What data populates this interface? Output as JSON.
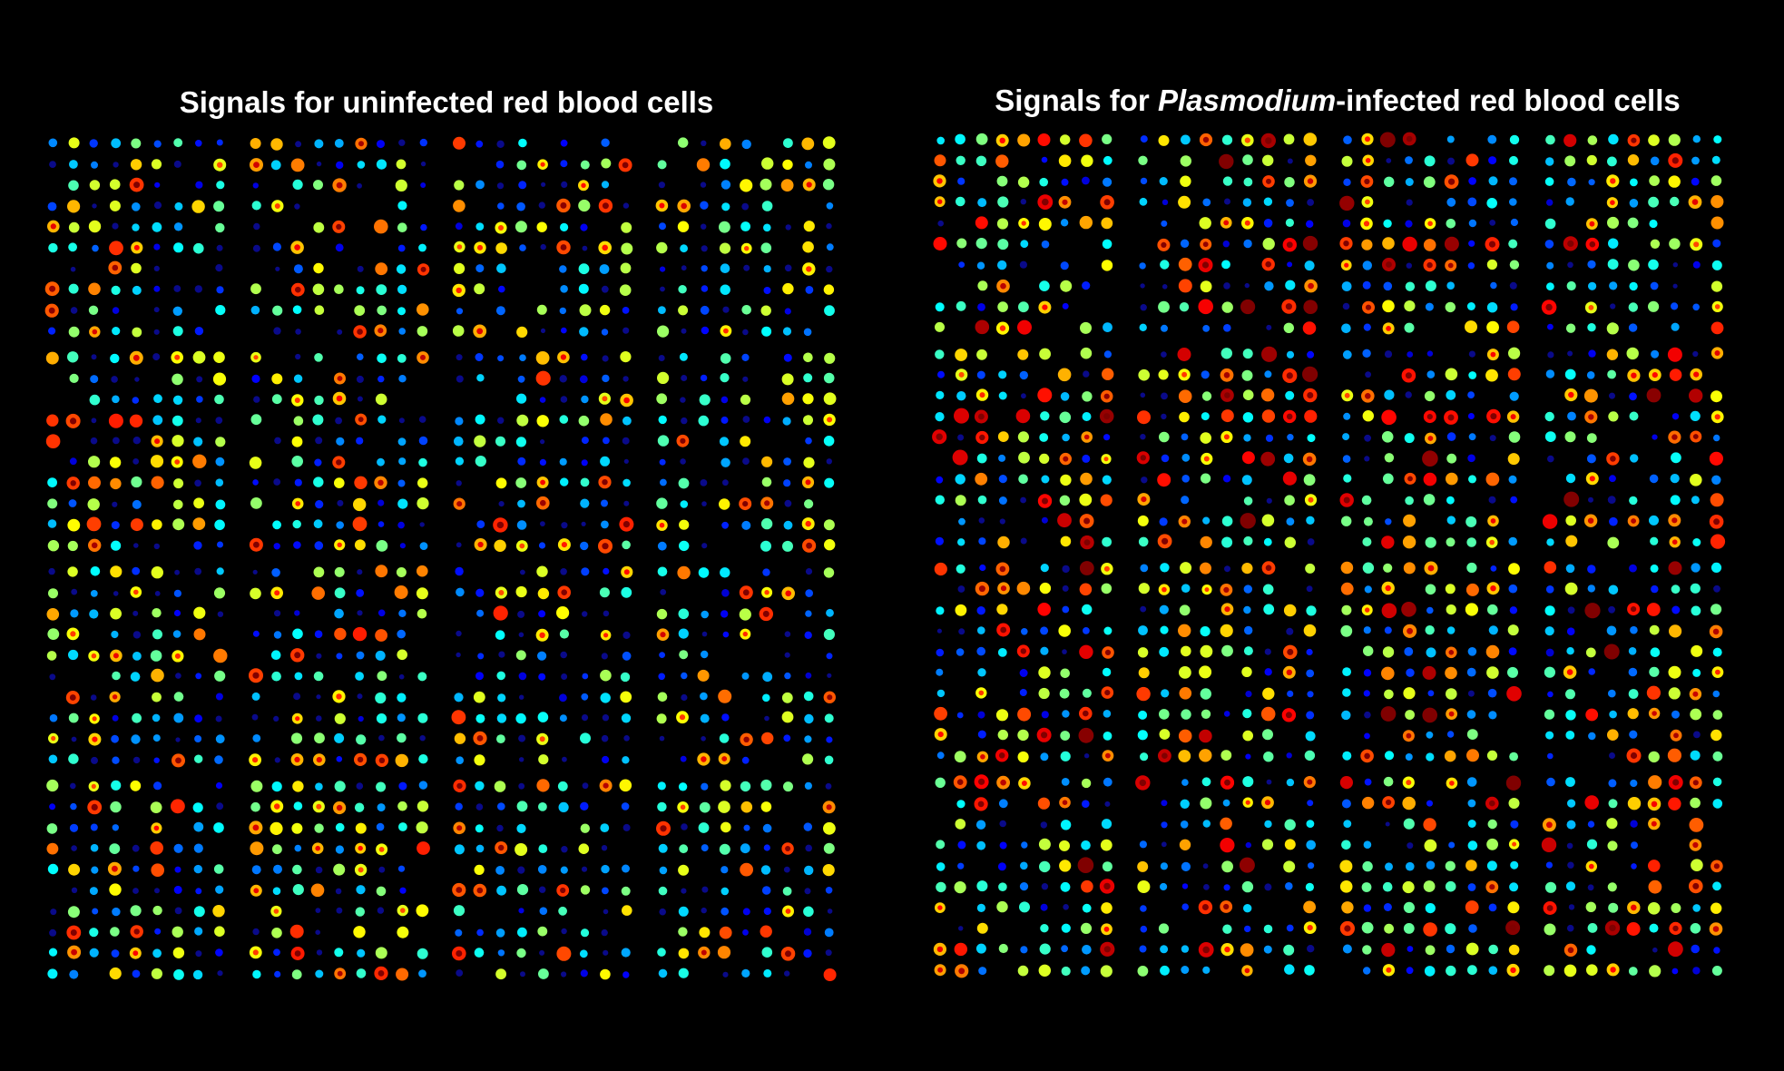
{
  "panels": [
    {
      "title": {
        "before": "Signals for uninfected red blood cells"
      }
    },
    {
      "title": {
        "before": "Signals for ",
        "italic": "Plasmodium",
        "after": "-infected red blood cells"
      }
    }
  ]
}
